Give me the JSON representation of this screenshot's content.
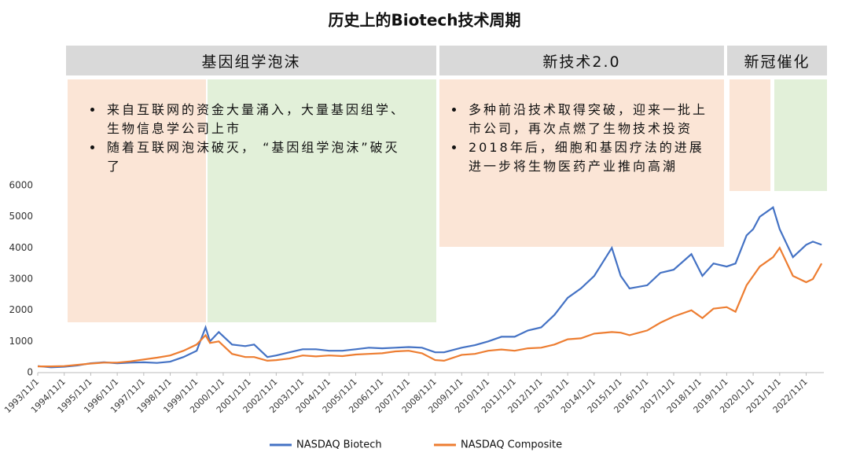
{
  "chart_data": {
    "type": "line",
    "title": "历史上的Biotech技术周期",
    "x": [
      "1993/11/1",
      "1994/5/1",
      "1994/11/1",
      "1995/5/1",
      "1995/11/1",
      "1996/5/1",
      "1996/11/1",
      "1997/5/1",
      "1997/11/1",
      "1998/5/1",
      "1998/11/1",
      "1999/5/1",
      "1999/11/1",
      "2000/3/1",
      "2000/5/1",
      "2000/9/1",
      "2001/3/1",
      "2001/9/1",
      "2002/1/1",
      "2002/7/1",
      "2002/11/1",
      "2003/5/1",
      "2003/11/1",
      "2004/5/1",
      "2004/11/1",
      "2005/5/1",
      "2005/11/1",
      "2006/5/1",
      "2006/11/1",
      "2007/5/1",
      "2007/11/1",
      "2008/5/1",
      "2008/11/1",
      "2009/3/1",
      "2009/11/1",
      "2010/5/1",
      "2010/11/1",
      "2011/5/1",
      "2011/11/1",
      "2012/5/1",
      "2012/11/1",
      "2013/5/1",
      "2013/11/1",
      "2014/5/1",
      "2014/11/1",
      "2015/7/1",
      "2015/11/1",
      "2016/3/1",
      "2016/11/1",
      "2017/5/1",
      "2017/11/1",
      "2018/7/1",
      "2018/12/1",
      "2019/5/1",
      "2019/11/1",
      "2020/3/1",
      "2020/8/1",
      "2020/11/1",
      "2021/2/1",
      "2021/8/1",
      "2021/11/1",
      "2022/5/1",
      "2022/11/1",
      "2023/2/1",
      "2023/6/1"
    ],
    "series": [
      {
        "name": "NASDAQ Biotech",
        "color": "#4472c4",
        "values": [
          210,
          170,
          190,
          230,
          300,
          330,
          300,
          320,
          330,
          310,
          350,
          500,
          700,
          1450,
          1000,
          1300,
          900,
          850,
          900,
          500,
          550,
          650,
          750,
          750,
          700,
          700,
          750,
          800,
          780,
          800,
          820,
          800,
          650,
          650,
          800,
          880,
          1000,
          1150,
          1150,
          1350,
          1450,
          1850,
          2400,
          2700,
          3100,
          4000,
          3100,
          2700,
          2800,
          3200,
          3300,
          3800,
          3100,
          3500,
          3400,
          3500,
          4400,
          4600,
          5000,
          5300,
          4600,
          3700,
          4100,
          4200,
          4100
        ]
      },
      {
        "name": "NASDAQ Composite",
        "color": "#ed7d31",
        "values": [
          200,
          200,
          210,
          250,
          290,
          320,
          320,
          360,
          420,
          480,
          550,
          700,
          900,
          1200,
          950,
          1000,
          600,
          500,
          500,
          380,
          400,
          450,
          550,
          520,
          550,
          530,
          580,
          600,
          620,
          680,
          700,
          620,
          400,
          380,
          570,
          600,
          700,
          740,
          700,
          780,
          800,
          900,
          1070,
          1100,
          1250,
          1300,
          1280,
          1200,
          1350,
          1600,
          1800,
          2000,
          1750,
          2050,
          2100,
          1950,
          2800,
          3100,
          3400,
          3700,
          4000,
          3100,
          2900,
          3000,
          3500
        ]
      }
    ],
    "xlim": [
      "1993/11/1",
      "2023/7/1"
    ],
    "xticks": [
      "1993/11/1",
      "1994/11/1",
      "1995/11/1",
      "1996/11/1",
      "1997/11/1",
      "1998/11/1",
      "1999/11/1",
      "2000/11/1",
      "2001/11/1",
      "2002/11/1",
      "2003/11/1",
      "2004/11/1",
      "2005/11/1",
      "2006/11/1",
      "2007/11/1",
      "2008/11/1",
      "2009/11/1",
      "2010/11/1",
      "2011/11/1",
      "2012/11/1",
      "2013/11/1",
      "2014/11/1",
      "2015/11/1",
      "2016/11/1",
      "2017/11/1",
      "2018/11/1",
      "2019/11/1",
      "2020/11/1",
      "2021/11/1",
      "2022/11/1"
    ],
    "ylim": [
      0,
      6000
    ],
    "yticks": [
      0,
      1000,
      2000,
      3000,
      4000,
      5000,
      6000
    ],
    "legend": "bottom",
    "sections": [
      {
        "title": "基因组学泡沫",
        "bullets": [
          "来自互联网的资金大量涌入，大量基因组学、生物信息学公司上市",
          "随着互联网泡沫破灭， “基因组学泡沫”破灭了"
        ]
      },
      {
        "title": "新技术2.0",
        "bullets": [
          "多种前沿技术取得突破，迎来一批上市公司，再次点燃了生物技术投资",
          "2018年后，细胞和基因疗法的进展进一步将生物医药产业推向高潮"
        ]
      },
      {
        "title": "新冠催化",
        "bullets": []
      }
    ]
  }
}
